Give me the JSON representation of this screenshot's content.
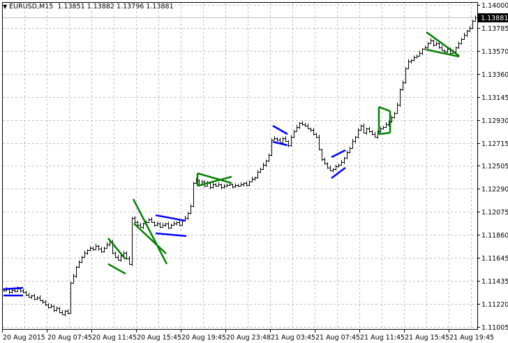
{
  "header": {
    "symbol": "EURUSD,M15",
    "open": "1.13851",
    "high": "1.13882",
    "low": "1.13796",
    "close": "1.13881"
  },
  "current_price_label": "1.13881",
  "colors": {
    "bars": "#000000",
    "grid": "#c0c0c0",
    "green": "#008000",
    "blue": "#0000ff",
    "price_box": "#000000"
  },
  "chart_data": {
    "type": "ohlc",
    "symbol": "EURUSD",
    "timeframe": "M15",
    "ylim": [
      1.11005,
      1.14
    ],
    "grid": true,
    "price_ticks": [
      "1.14000",
      "1.13785",
      "1.13570",
      "1.13360",
      "1.13145",
      "1.12930",
      "1.12715",
      "1.12505",
      "1.12290",
      "1.12075",
      "1.11860",
      "1.11645",
      "1.11435",
      "1.11220",
      "1.11005"
    ],
    "time_ticks": [
      "20 Aug 2015",
      "20 Aug 07:45",
      "20 Aug 11:45",
      "20 Aug 15:45",
      "20 Aug 19:45",
      "20 Aug 23:48",
      "21 Aug 03:45",
      "21 Aug 07:45",
      "21 Aug 11:45",
      "21 Aug 15:45",
      "21 Aug 19:45"
    ],
    "closes": [
      1.11343,
      1.11356,
      1.1133,
      1.11349,
      1.11336,
      1.11362,
      1.11343,
      1.1133,
      1.11304,
      1.11284,
      1.11297,
      1.11265,
      1.11278,
      1.11252,
      1.11239,
      1.11213,
      1.11187,
      1.112,
      1.11161,
      1.1118,
      1.11141,
      1.11122,
      1.11154,
      1.11135,
      1.11414,
      1.11479,
      1.11564,
      1.11609,
      1.11655,
      1.11694,
      1.1172,
      1.11739,
      1.11726,
      1.11759,
      1.11733,
      1.11707,
      1.11739,
      1.11772,
      1.11798,
      1.11694,
      1.11655,
      1.11629,
      1.11668,
      1.11694,
      1.11642,
      1.1159,
      1.12018,
      1.1198,
      1.11954,
      1.11934,
      1.11967,
      1.1198,
      1.12005,
      1.1198,
      1.11954,
      1.11967,
      1.11934,
      1.11954,
      1.11967,
      1.11928,
      1.11954,
      1.11967,
      1.1198,
      1.11954,
      1.11992,
      1.12018,
      1.12064,
      1.12129,
      1.12343,
      1.12369,
      1.1233,
      1.12356,
      1.12317,
      1.12343,
      1.12304,
      1.1233,
      1.12317,
      1.1233,
      1.12304,
      1.12317,
      1.12324,
      1.1233,
      1.12311,
      1.12324,
      1.12317,
      1.1233,
      1.12343,
      1.12324,
      1.12356,
      1.12382,
      1.12395,
      1.12447,
      1.12473,
      1.12512,
      1.12551,
      1.12603,
      1.12746,
      1.12759,
      1.12746,
      1.1272,
      1.12759,
      1.12733,
      1.12694,
      1.12772,
      1.12824,
      1.12863,
      1.12902,
      1.12889,
      1.12876,
      1.1285,
      1.12837,
      1.12798,
      1.12772,
      1.12655,
      1.12564,
      1.12525,
      1.12486,
      1.1246,
      1.12473,
      1.12499,
      1.12512,
      1.12538,
      1.12577,
      1.12629,
      1.12668,
      1.12733,
      1.12772,
      1.12837,
      1.12876,
      1.12811,
      1.1285,
      1.12824,
      1.12798,
      1.12772,
      1.12824,
      1.1285,
      1.12863,
      1.12889,
      1.12915,
      1.12954,
      1.12993,
      1.13071,
      1.13214,
      1.13279,
      1.13409,
      1.13474,
      1.13487,
      1.13513,
      1.13526,
      1.13552,
      1.13591,
      1.13604,
      1.13643,
      1.13669,
      1.1363,
      1.13643,
      1.13604,
      1.13578,
      1.13565,
      1.13591,
      1.13552,
      1.13565,
      1.13604,
      1.13643,
      1.13682,
      1.13721,
      1.1376,
      1.13786,
      1.13851,
      1.13881
    ],
    "pattern_lines": [
      {
        "color": "blue",
        "from": [
          0,
          1.11356
        ],
        "to": [
          7,
          1.11369
        ]
      },
      {
        "color": "blue",
        "from": [
          0,
          1.11297
        ],
        "to": [
          7,
          1.11297
        ]
      },
      {
        "color": "green",
        "from": [
          37.5,
          1.1183
        ],
        "to": [
          43.75,
          1.11635
        ]
      },
      {
        "color": "green",
        "from": [
          37.5,
          1.1159
        ],
        "to": [
          43.75,
          1.11499
        ]
      },
      {
        "color": "green",
        "from": [
          46.5,
          1.12194
        ],
        "to": [
          58.5,
          1.1159
        ]
      },
      {
        "color": "green",
        "from": [
          46.75,
          1.11967
        ],
        "to": [
          58.25,
          1.11687
        ]
      },
      {
        "color": "blue",
        "from": [
          54.5,
          1.12044
        ],
        "to": [
          65.25,
          1.11992
        ]
      },
      {
        "color": "blue",
        "from": [
          54.5,
          1.11876
        ],
        "to": [
          65.5,
          1.1185
        ]
      },
      {
        "color": "green",
        "from": [
          69.5,
          1.12434
        ],
        "to": [
          81.75,
          1.12343
        ]
      },
      {
        "color": "green",
        "from": [
          69.5,
          1.12317
        ],
        "to": [
          81.75,
          1.12402
        ]
      },
      {
        "color": "green",
        "from": [
          69.5,
          1.12434
        ],
        "to": [
          69.5,
          1.12317
        ]
      },
      {
        "color": "blue",
        "from": [
          96.5,
          1.12876
        ],
        "to": [
          101.75,
          1.12798
        ]
      },
      {
        "color": "blue",
        "from": [
          96.5,
          1.12727
        ],
        "to": [
          101.75,
          1.12694
        ]
      },
      {
        "color": "blue",
        "from": [
          117.5,
          1.12584
        ],
        "to": [
          122.5,
          1.12649
        ]
      },
      {
        "color": "blue",
        "from": [
          117.5,
          1.12389
        ],
        "to": [
          122.5,
          1.12486
        ]
      },
      {
        "color": "green",
        "from": [
          134.5,
          1.13051
        ],
        "to": [
          138.5,
          1.13012
        ]
      },
      {
        "color": "green",
        "from": [
          134.5,
          1.12798
        ],
        "to": [
          138.5,
          1.12811
        ]
      },
      {
        "color": "green",
        "from": [
          134.5,
          1.13051
        ],
        "to": [
          134.5,
          1.12798
        ]
      },
      {
        "color": "green",
        "from": [
          138.5,
          1.13012
        ],
        "to": [
          138.5,
          1.12811
        ]
      },
      {
        "color": "green",
        "from": [
          151.5,
          1.13747
        ],
        "to": [
          163.25,
          1.13526
        ]
      },
      {
        "color": "green",
        "from": [
          151.5,
          1.13584
        ],
        "to": [
          163.25,
          1.13519
        ]
      }
    ]
  }
}
